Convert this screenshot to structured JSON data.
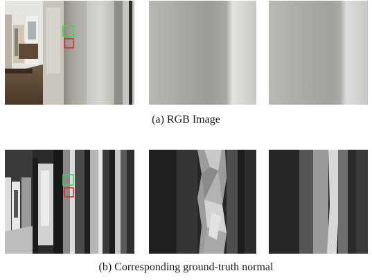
{
  "rows": [
    {
      "caption": "(a) RGB Image"
    },
    {
      "caption": "(b) Corresponding ground-truth normal"
    }
  ],
  "colors": {
    "green_box": "#3fd44a",
    "red_box": "#e0282a"
  }
}
